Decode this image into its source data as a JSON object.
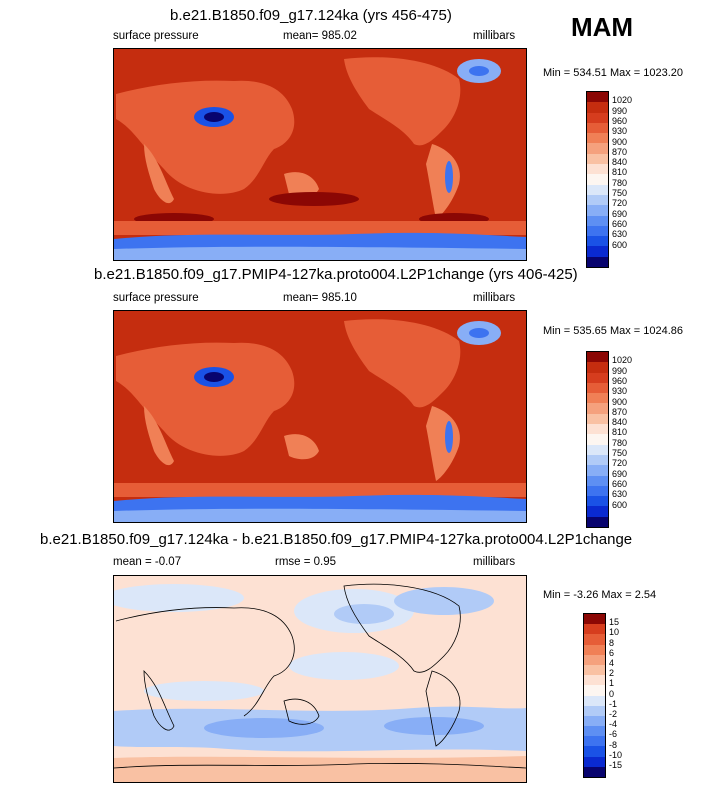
{
  "season": "MAM",
  "colors": {
    "pressure": [
      "#08046e",
      "#0a2ad0",
      "#1a52e6",
      "#3d73f0",
      "#5e8ff3",
      "#88aef6",
      "#b1cbf7",
      "#dbe7f9",
      "#fdf6f1",
      "#fde1d3",
      "#f9c1a3",
      "#f5a17d",
      "#f08056",
      "#e65d37",
      "#d63d1e",
      "#c52d0f",
      "#8b0704"
    ],
    "diff": [
      "#08046e",
      "#0a2ad0",
      "#1a52e6",
      "#3d73f0",
      "#5e8ff3",
      "#88aef6",
      "#b1cbf7",
      "#dbe7f9",
      "#fdf6f1",
      "#fde1d3",
      "#f9c1a3",
      "#f5a17d",
      "#f08056",
      "#e65d37",
      "#d63d1e",
      "#8b0704"
    ]
  },
  "panels": [
    {
      "title": "b.e21.B1850.f09_g17.124ka (yrs 456-475)",
      "left_label": "surface pressure",
      "mean_label": "mean= 985.02",
      "units": "millibars",
      "minmax": "Min = 534.51 Max = 1023.20",
      "levels": [
        "1020",
        "990",
        "960",
        "930",
        "900",
        "870",
        "840",
        "810",
        "780",
        "750",
        "720",
        "690",
        "660",
        "630",
        "600"
      ]
    },
    {
      "title": "b.e21.B1850.f09_g17.PMIP4-127ka.proto004.L2P1change (yrs 406-425)",
      "left_label": "surface pressure",
      "mean_label": "mean= 985.10",
      "units": "millibars",
      "minmax": "Min = 535.65 Max = 1024.86",
      "levels": [
        "1020",
        "990",
        "960",
        "930",
        "900",
        "870",
        "840",
        "810",
        "780",
        "750",
        "720",
        "690",
        "660",
        "630",
        "600"
      ]
    },
    {
      "title": "b.e21.B1850.f09_g17.124ka - b.e21.B1850.f09_g17.PMIP4-127ka.proto004.L2P1change",
      "left_label": "mean =  -0.07",
      "mean_label": "rmse =   0.95",
      "units": "millibars",
      "minmax": "Min =  -3.26 Max =   2.54",
      "levels": [
        "15",
        "10",
        "8",
        "6",
        "4",
        "2",
        "1",
        "0",
        "-1",
        "-2",
        "-4",
        "-6",
        "-8",
        "-10",
        "-15"
      ]
    }
  ]
}
